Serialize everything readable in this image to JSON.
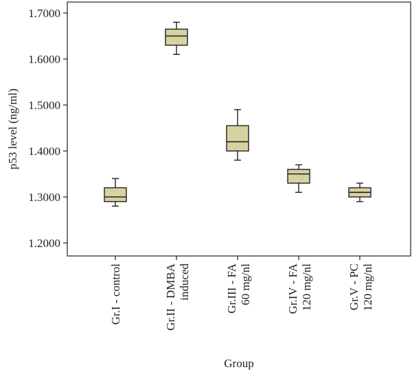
{
  "chart_data": {
    "type": "boxplot",
    "title": "",
    "xlabel": "Group",
    "ylabel": "p53 level (ng/ml)",
    "ylim": [
      1.17,
      1.72
    ],
    "yticks": [
      "1.2000",
      "1.3000",
      "1.4000",
      "1.5000",
      "1.6000",
      "1.7000"
    ],
    "grid": false,
    "box_color": "#d6d3a0",
    "line_color": "#231f20",
    "groups": [
      {
        "label": [
          "Gr.I - control"
        ],
        "min": 1.28,
        "q1": 1.29,
        "median": 1.3,
        "q3": 1.32,
        "max": 1.34
      },
      {
        "label": [
          "Gr.II - DMBA",
          "induced"
        ],
        "min": 1.61,
        "q1": 1.63,
        "median": 1.65,
        "q3": 1.665,
        "max": 1.68
      },
      {
        "label": [
          "Gr.III - FA",
          "60 mg/nl"
        ],
        "min": 1.38,
        "q1": 1.4,
        "median": 1.42,
        "q3": 1.455,
        "max": 1.49
      },
      {
        "label": [
          "Gr.IV - FA",
          "120 mg/nl"
        ],
        "min": 1.31,
        "q1": 1.33,
        "median": 1.35,
        "q3": 1.36,
        "max": 1.37
      },
      {
        "label": [
          "Gr.V - PC",
          "120 mg/nl"
        ],
        "min": 1.29,
        "q1": 1.3,
        "median": 1.31,
        "q3": 1.32,
        "max": 1.33
      }
    ]
  }
}
